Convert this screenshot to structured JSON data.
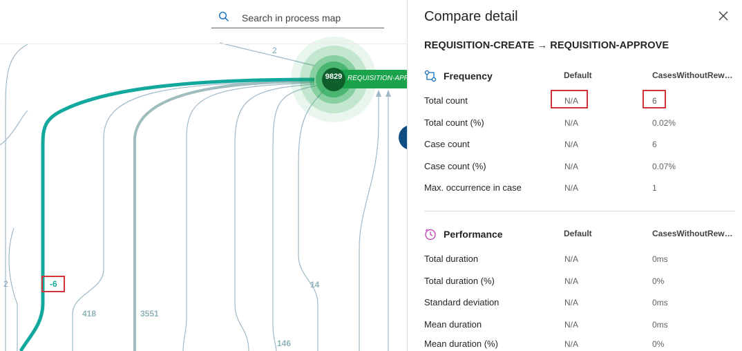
{
  "search": {
    "placeholder": "Search in process map",
    "icon": "search-icon"
  },
  "map": {
    "node": {
      "count": "9829",
      "label": "REQUISITION-APPROVE",
      "color": "#1aa34a"
    },
    "edge_labels": {
      "top": "2",
      "left": "2",
      "diff": "-6",
      "e418": "418",
      "e3551": "3551",
      "e14": "14",
      "e146": "146"
    }
  },
  "panel": {
    "title": "Compare detail",
    "transition": "REQUISITION-CREATE → REQUISITION-APPROVE",
    "frequency": {
      "name": "Frequency",
      "col1": "Default",
      "col2": "CasesWithoutRework",
      "rows": [
        {
          "label": "Total count",
          "v1": "N/A",
          "v2": "6"
        },
        {
          "label": "Total count (%)",
          "v1": "N/A",
          "v2": "0.02%"
        },
        {
          "label": "Case count",
          "v1": "N/A",
          "v2": "6"
        },
        {
          "label": "Case count (%)",
          "v1": "N/A",
          "v2": "0.07%"
        },
        {
          "label": "Max. occurrence in case",
          "v1": "N/A",
          "v2": "1"
        }
      ]
    },
    "performance": {
      "name": "Performance",
      "col1": "Default",
      "col2": "CasesWithoutRework",
      "rows": [
        {
          "label": "Total duration",
          "v1": "N/A",
          "v2": "0ms"
        },
        {
          "label": "Total duration (%)",
          "v1": "N/A",
          "v2": "0%"
        },
        {
          "label": "Standard deviation",
          "v1": "N/A",
          "v2": "0ms"
        },
        {
          "label": "Mean duration",
          "v1": "N/A",
          "v2": "0ms"
        },
        {
          "label": "Mean duration (%)",
          "v1": "N/A",
          "v2": "0%"
        }
      ]
    }
  },
  "colors": {
    "accent": "#13a89e",
    "highlight": "#d13438",
    "link": "#0f6cbd"
  }
}
